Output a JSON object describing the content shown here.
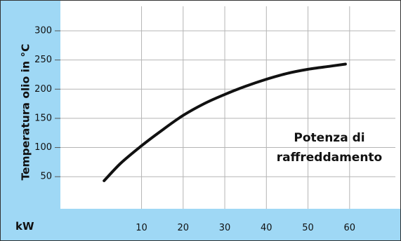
{
  "chart_data": {
    "type": "line",
    "title": "",
    "ylabel": "Temperatura olio in °C",
    "xlabel": "kW",
    "annotation": [
      "Potenza di",
      "raffreddamento"
    ],
    "xlim": [
      -9.5,
      71
    ],
    "ylim": [
      -5,
      342
    ],
    "x_ticks": [
      10,
      20,
      30,
      40,
      50,
      60
    ],
    "y_ticks": [
      50,
      100,
      150,
      200,
      250,
      300
    ],
    "grid": true,
    "colors": {
      "band": "#9fd8f5",
      "plot_bg": "#ffffff",
      "grid": "#b5b5b5",
      "line": "#111111",
      "frame": "#333333"
    },
    "series": [
      {
        "x": [
          1,
          5,
          10,
          15,
          20,
          25,
          30,
          35,
          40,
          45,
          50,
          55,
          59
        ],
        "y": [
          43,
          73,
          103,
          130,
          155,
          175,
          191,
          205,
          217,
          227,
          234,
          239,
          243
        ]
      }
    ]
  }
}
